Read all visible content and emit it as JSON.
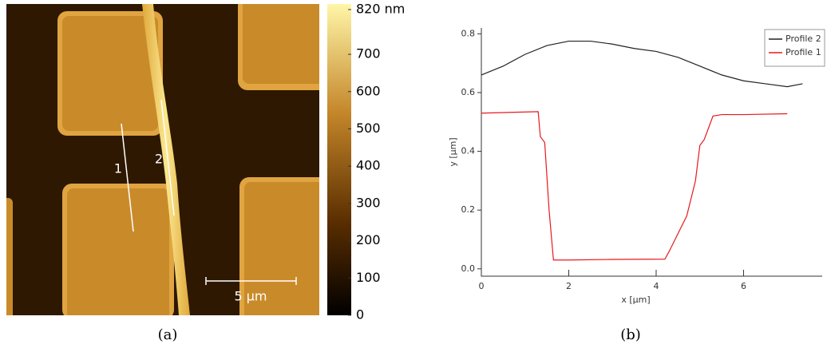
{
  "chart_data": [
    {
      "type": "image",
      "caption": "(a)",
      "clim": [
        0,
        820
      ],
      "cticks": [
        0,
        100,
        200,
        300,
        400,
        500,
        600,
        700,
        {
          "value": 820,
          "label": "820 nm"
        }
      ],
      "annotations": [
        "1",
        "2"
      ],
      "scale_bar": "5 µm"
    },
    {
      "type": "line",
      "caption": "(b)",
      "xlabel": "x [µm]",
      "ylabel": "y [µm]",
      "xlim": [
        0,
        7.8
      ],
      "ylim": [
        -0.025,
        0.82
      ],
      "xticks": [
        0,
        2,
        4,
        6
      ],
      "yticks": [
        {
          "value": 0,
          "label": "0.0"
        },
        0.2,
        0.4,
        0.6,
        0.8
      ],
      "legend": "top-right",
      "series": [
        {
          "name": "Profile 2",
          "color": "#222222",
          "x": [
            0,
            0.5,
            1,
            1.5,
            2,
            2.5,
            3,
            3.5,
            4,
            4.5,
            5,
            5.5,
            6,
            6.5,
            7,
            7.35
          ],
          "values": [
            0.66,
            0.69,
            0.73,
            0.76,
            0.775,
            0.775,
            0.765,
            0.75,
            0.74,
            0.72,
            0.69,
            0.66,
            0.64,
            0.63,
            0.62,
            0.63
          ]
        },
        {
          "name": "Profile 1",
          "color": "#e8191c",
          "x": [
            0,
            1.3,
            1.35,
            1.45,
            1.55,
            1.65,
            2,
            3,
            4.2,
            4.3,
            4.7,
            4.9,
            5,
            5.1,
            5.3,
            5.5,
            6,
            7
          ],
          "values": [
            0.53,
            0.535,
            0.45,
            0.43,
            0.2,
            0.03,
            0.03,
            0.032,
            0.033,
            0.06,
            0.18,
            0.3,
            0.42,
            0.44,
            0.52,
            0.525,
            0.525,
            0.528
          ]
        }
      ]
    }
  ]
}
